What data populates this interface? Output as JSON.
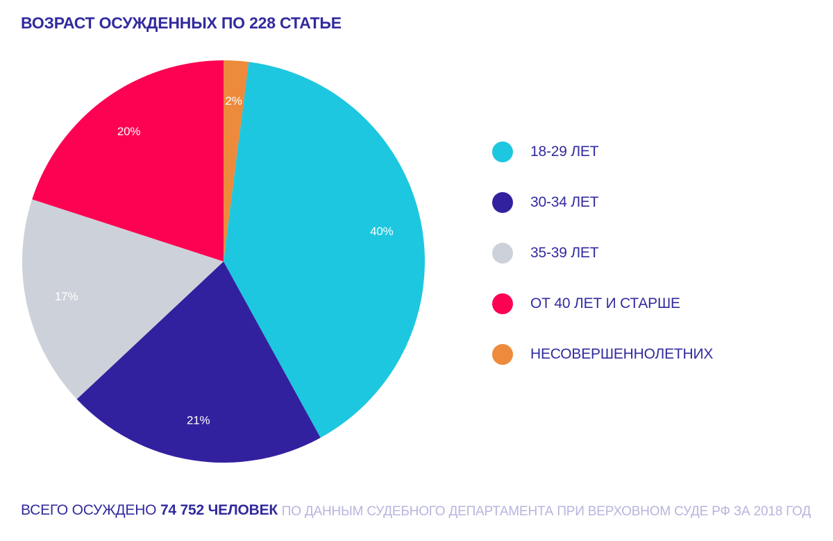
{
  "page": {
    "title": "ВОЗРАСТ ОСУЖДЕННЫХ ПО 228 СТАТЬЕ",
    "footer_left_prefix": "ВСЕГО ОСУЖДЕНО ",
    "footer_left_bold": "74 752 ЧЕЛОВЕК",
    "footer_right": "ПО ДАННЫМ СУДЕБНОГО ДЕПАРТАМЕНТА ПРИ ВЕРХОВНОМ СУДЕ РФ ЗА 2018 ГОД"
  },
  "colors": {
    "background": "#ffffff",
    "title_text": "#312a9e",
    "legend_text": "#312a9e",
    "source_text": "#b7b5de",
    "slice_label_text": "#ffffff"
  },
  "chart_data": {
    "type": "pie",
    "title": "ВОЗРАСТ ОСУЖДЕННЫХ ПО 228 СТАТЬЕ",
    "unit": "percent",
    "legend_position": "right",
    "start_angle_deg_clockwise_from_top": 0,
    "slice_draw_order": [
      4,
      0,
      1,
      2,
      3
    ],
    "segments": [
      {
        "label": "18-29 ЛЕТ",
        "value": 40,
        "value_label": "40%",
        "color": "#1dc7df"
      },
      {
        "label": "30-34 ЛЕТ",
        "value": 21,
        "value_label": "21%",
        "color": "#32219e"
      },
      {
        "label": "35-39 ЛЕТ",
        "value": 17,
        "value_label": "17%",
        "color": "#cdd2da"
      },
      {
        "label": "ОТ 40 ЛЕТ И СТАРШЕ",
        "value": 20,
        "value_label": "20%",
        "color": "#fd0152"
      },
      {
        "label": "НЕСОВЕРШЕННОЛЕТНИХ",
        "value": 2,
        "value_label": "2%",
        "color": "#ee8a3b"
      }
    ],
    "total_label_prefix": "ВСЕГО ОСУЖДЕНО",
    "total_value": "74 752 ЧЕЛОВЕК",
    "source": "ПО ДАННЫМ СУДЕБНОГО ДЕПАРТАМЕНТА ПРИ ВЕРХОВНОМ СУДЕ РФ ЗА 2018 ГОД"
  }
}
